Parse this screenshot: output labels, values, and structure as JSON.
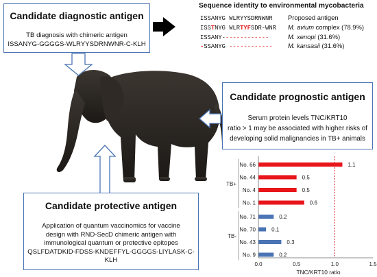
{
  "diagnostic": {
    "title": "Candidate diagnostic antigen",
    "line1": "TB diagnosis with chimeric antigen",
    "line2": "ISSANYG-GGGGS-WLRYYSDRNWNR-C-KLH"
  },
  "sequence": {
    "title": "Sequence identity to environmental mycobacteria",
    "rows": [
      {
        "pre": "ISSANYG WLRYYSDRNWNR",
        "red1": "",
        "mid": "",
        "red2": "",
        "post": "",
        "dash": "",
        "label": "Proposed antigen",
        "italic": false,
        "pct": ""
      },
      {
        "pre": "ISS",
        "red1": "T",
        "mid": "NYG WLR",
        "red2": "TYF",
        "post": "SDR-WNR",
        "dash": "",
        "label": "M. avium",
        "italic": true,
        "pct": " complex (78.9%)"
      },
      {
        "pre": "ISSANY-",
        "red1": "",
        "mid": "",
        "red2": "",
        "post": "",
        "dash": "------------",
        "label": "M. xenopi",
        "italic": true,
        "pct": " (31.6%)"
      },
      {
        "pre": "",
        "red1": "-",
        "mid": "SSANYG",
        "red2": "",
        "post": "",
        "dash": " ------------",
        "label": "M. kansasii",
        "italic": true,
        "pct": " (31.6%)"
      }
    ]
  },
  "prognostic": {
    "title": "Candidate prognostic antigen",
    "line1": "Serum protein levels TNC/KRT10",
    "line2": "ratio > 1 may be associated with higher risks of",
    "line3": "developing solid malignancies in TB+ animals"
  },
  "protective": {
    "title": "Candidate protective antigen",
    "line1": "Application of quantum vaccinomics for vaccine",
    "line2": "design with RND-SecD chimeric antigen with",
    "line3": "immunological quantum or protective epitopes",
    "line4": "QSLFDATDKID-FDSS-KNDEFFYL-GGGGS-LIYLASK-C-KLH"
  },
  "colors": {
    "border": "#4a74b4",
    "tb_pos": "#e8151b",
    "tb_neg": "#4a74b4",
    "threshold": "#d9262b",
    "arrow": "#000000"
  },
  "chart_data": {
    "type": "bar",
    "orientation": "horizontal",
    "xlabel": "TNC/KRT10 ratio",
    "xlim": [
      0,
      1.5
    ],
    "xticks": [
      "0.0",
      "0.5",
      "1.0",
      "1.5"
    ],
    "threshold": 1.0,
    "groups": [
      {
        "name": "TB+",
        "color": "#e8151b",
        "categories": [
          "No. 66",
          "No. 44",
          "No. 4",
          "No. 1"
        ],
        "values": [
          1.1,
          0.5,
          0.5,
          0.6
        ],
        "labels": [
          "1.1",
          "0.5",
          "0.5",
          "0.6"
        ]
      },
      {
        "name": "TB-",
        "color": "#4a74b4",
        "categories": [
          "No. 71",
          "No. 70",
          "No. 43",
          "No. 9"
        ],
        "values": [
          0.2,
          0.1,
          0.3,
          0.2
        ],
        "labels": [
          "0.2",
          "0.1",
          "0.3",
          "0.2"
        ]
      }
    ]
  }
}
